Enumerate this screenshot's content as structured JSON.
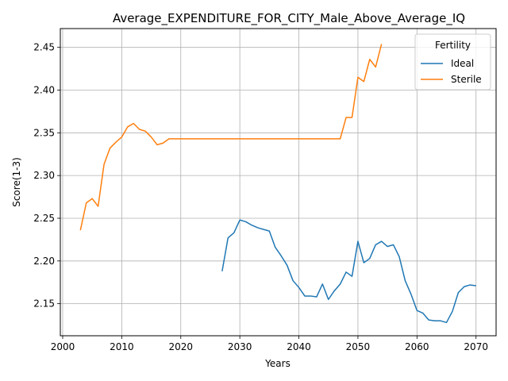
{
  "chart_data": {
    "type": "line",
    "title": "Average_EXPENDITURE_FOR_CITY_Male_Above_Average_IQ",
    "xlabel": "Years",
    "ylabel": "Score(1-3)",
    "xlim": [
      1999.6,
      2073.4
    ],
    "ylim": [
      2.1125,
      2.472
    ],
    "xticks": [
      2000,
      2010,
      2020,
      2030,
      2040,
      2050,
      2060,
      2070
    ],
    "xtick_labels": [
      "2000",
      "2010",
      "2020",
      "2030",
      "2040",
      "2050",
      "2060",
      "2070"
    ],
    "yticks": [
      2.15,
      2.2,
      2.25,
      2.3,
      2.35,
      2.4,
      2.45
    ],
    "ytick_labels": [
      "2.15",
      "2.20",
      "2.25",
      "2.30",
      "2.35",
      "2.40",
      "2.45"
    ],
    "grid": true,
    "legend": {
      "title": "Fertility",
      "placement": "top-right"
    },
    "series": [
      {
        "name": "Ideal",
        "color": "#1f77b4",
        "x": [
          2027,
          2028,
          2029,
          2030,
          2031,
          2032,
          2033,
          2034,
          2035,
          2036,
          2037,
          2038,
          2039,
          2040,
          2041,
          2042,
          2043,
          2044,
          2045,
          2046,
          2047,
          2048,
          2049,
          2050,
          2051,
          2052,
          2053,
          2054,
          2055,
          2056,
          2057,
          2058,
          2059,
          2060,
          2061,
          2062,
          2063,
          2064,
          2065,
          2066,
          2067,
          2068,
          2069,
          2070
        ],
        "values": [
          2.188,
          2.227,
          2.233,
          2.248,
          2.246,
          2.242,
          2.239,
          2.237,
          2.235,
          2.216,
          2.206,
          2.195,
          2.177,
          2.169,
          2.159,
          2.159,
          2.158,
          2.173,
          2.155,
          2.165,
          2.173,
          2.187,
          2.182,
          2.223,
          2.198,
          2.203,
          2.219,
          2.223,
          2.217,
          2.219,
          2.205,
          2.177,
          2.161,
          2.142,
          2.139,
          2.131,
          2.13,
          2.13,
          2.128,
          2.141,
          2.163,
          2.17,
          2.172,
          2.171
        ]
      },
      {
        "name": "Sterile",
        "color": "#ff7f0e",
        "x": [
          2003,
          2004,
          2005,
          2006,
          2007,
          2008,
          2009,
          2010,
          2011,
          2012,
          2013,
          2014,
          2015,
          2016,
          2017,
          2018,
          2019,
          2020,
          2021,
          2022,
          2023,
          2024,
          2025,
          2026,
          2027,
          2028,
          2029,
          2030,
          2031,
          2032,
          2033,
          2034,
          2035,
          2036,
          2037,
          2038,
          2039,
          2040,
          2041,
          2042,
          2043,
          2044,
          2045,
          2046,
          2047,
          2048,
          2049,
          2050,
          2051,
          2052,
          2053,
          2054
        ],
        "values": [
          2.236,
          2.268,
          2.273,
          2.264,
          2.313,
          2.332,
          2.339,
          2.345,
          2.357,
          2.361,
          2.354,
          2.352,
          2.345,
          2.336,
          2.338,
          2.343,
          2.343,
          2.343,
          2.343,
          2.343,
          2.343,
          2.343,
          2.343,
          2.343,
          2.343,
          2.343,
          2.343,
          2.343,
          2.343,
          2.343,
          2.343,
          2.343,
          2.343,
          2.343,
          2.343,
          2.343,
          2.343,
          2.343,
          2.343,
          2.343,
          2.343,
          2.343,
          2.343,
          2.343,
          2.343,
          2.368,
          2.368,
          2.415,
          2.41,
          2.436,
          2.427,
          2.454
        ]
      }
    ]
  }
}
